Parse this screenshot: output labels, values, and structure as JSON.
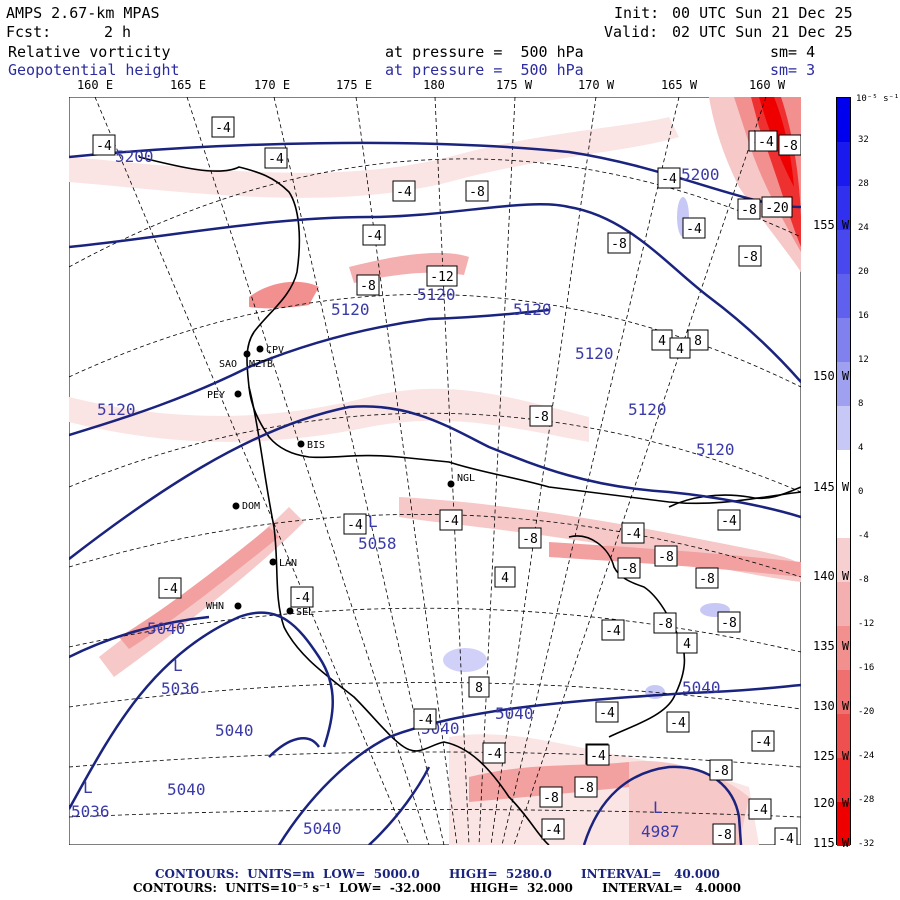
{
  "header": {
    "title": "AMPS 2.67-km MPAS",
    "fcst_label": "Fcst:",
    "fcst_value": "2 h",
    "init_label": "Init:",
    "init_value": "00 UTC Sun 21 Dec 25",
    "valid_label": "Valid:",
    "valid_value": "02 UTC Sun 21 Dec 25",
    "field1_name": "Relative vorticity",
    "field1_pressure": "at pressure =  500 hPa",
    "field1_sm": "sm= 4",
    "field2_name": "Geopotential height",
    "field2_pressure": "at pressure =  500 hPa",
    "field2_sm": "sm= 3"
  },
  "longitude_labels": [
    "160 E",
    "165 E",
    "170 E",
    "175 E",
    "180",
    "175 W",
    "170 W",
    "165 W",
    "160 W"
  ],
  "latitude_labels": [
    "155 W",
    "150 W",
    "145 W",
    "140 W",
    "135 W",
    "130 W",
    "125 W",
    "120 W",
    "115 W"
  ],
  "colorbar": {
    "units": "10⁻⁵ s⁻¹",
    "ticks": [
      "32",
      "28",
      "24",
      "20",
      "16",
      "12",
      "8",
      "4",
      "0",
      "-4",
      "-8",
      "-12",
      "-16",
      "-20",
      "-24",
      "-28",
      "-32"
    ],
    "colors": [
      "#0000ee",
      "#1a1aee",
      "#3030ee",
      "#4848ee",
      "#6060ee",
      "#8080ee",
      "#a0a0f0",
      "#c8c8f6",
      "#ffffff",
      "#ffffff",
      "#f6d0d0",
      "#f4b0b0",
      "#f29090",
      "#f07070",
      "#ee5050",
      "#ee3030",
      "#ee0000"
    ]
  },
  "stations": [
    "CPV",
    "SAO",
    "MZTB",
    "PEY",
    "BIS",
    "NGL",
    "DOM",
    "LAN",
    "WHN",
    "SEL"
  ],
  "height_labels": [
    "5200",
    "5200",
    "5120",
    "5120",
    "5120",
    "5120",
    "5120",
    "5120",
    "5120",
    "5040",
    "5040",
    "5040",
    "5040",
    "5040",
    "5040",
    "5040"
  ],
  "lows": [
    {
      "letter": "L",
      "value": "5058"
    },
    {
      "letter": "L",
      "value": "5036"
    },
    {
      "letter": "L",
      "value": "5036"
    },
    {
      "letter": "L",
      "value": "4987"
    }
  ],
  "vort_boxes": [
    "-4",
    "-4",
    "-4",
    "-4",
    "-8",
    "-8",
    "-8",
    "-4",
    "-8",
    "-4",
    "-8",
    "-8",
    "-4",
    "-8",
    "-12",
    "-8",
    "-4",
    "-4",
    "-4",
    "-8",
    "-4",
    "-8",
    "-8",
    "-8",
    "-8",
    "-4",
    "-8",
    "-4",
    "-4",
    "-4",
    "-4",
    "-4",
    "4",
    "4",
    "8",
    "8",
    "4",
    "-4",
    "-4",
    "-4",
    "-4",
    "-8",
    "-8",
    "-8",
    "-4",
    "-4",
    "-8",
    "-4",
    "-4",
    "-20",
    "4"
  ],
  "footer": {
    "line1": "CONTOURS:  UNITS=m  LOW=  5000.0       HIGH=  5280.0       INTERVAL=   40.000",
    "line2": "CONTOURS:  UNITS=10⁻⁵ s⁻¹  LOW=  -32.000       HIGH=  32.000       INTERVAL=   4.0000"
  },
  "colors": {
    "height_contour": "#1a237e",
    "header_blue": "#2b2ba0"
  }
}
